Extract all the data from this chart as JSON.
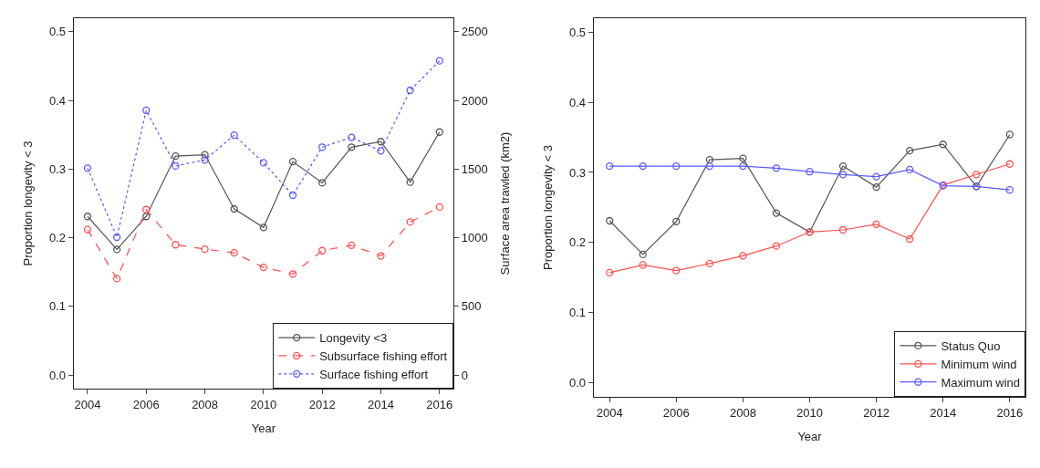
{
  "chart_data": [
    {
      "type": "line",
      "xlabel": "Year",
      "ylabel": "Proportion longevity < 3",
      "y2label": "Surface area trawled (km2)",
      "x": [
        2004,
        2005,
        2006,
        2007,
        2008,
        2009,
        2010,
        2011,
        2012,
        2013,
        2014,
        2015,
        2016
      ],
      "xlim": [
        2003.52,
        2016.48
      ],
      "xticks": [
        2004,
        2006,
        2008,
        2010,
        2012,
        2014,
        2016
      ],
      "ylim": [
        -0.02,
        0.52
      ],
      "yticks": [
        {
          "value": 0,
          "label": "0.0"
        },
        0.1,
        0.2,
        0.3,
        0.4,
        0.5
      ],
      "y2lim": [
        -100,
        2600
      ],
      "y2ticks": [
        0,
        500,
        1000,
        1500,
        2000,
        2500
      ],
      "legend": "bottom right",
      "marker": "circle",
      "series": [
        {
          "name": "Longevity <3",
          "color": "#555555",
          "line_style": "solid",
          "values": [
            0.231,
            0.183,
            0.231,
            0.319,
            0.321,
            0.242,
            0.215,
            0.311,
            0.28,
            0.332,
            0.34,
            0.281,
            0.354
          ]
        },
        {
          "name": "Subsurface fishing effort",
          "color": "#ff5050",
          "line_style": "dashed",
          "axis": "y2",
          "values": [
            1059,
            702,
            1205,
            949,
            917,
            890,
            784,
            736,
            906,
            945,
            867,
            1114,
            1224
          ]
        },
        {
          "name": "Surface fishing effort",
          "color": "#5a5aff",
          "line_style": "dotted",
          "axis": "y2",
          "values": [
            1507,
            1004,
            1928,
            1523,
            1567,
            1747,
            1546,
            1310,
            1660,
            1731,
            1633,
            2074,
            2289
          ]
        }
      ]
    },
    {
      "type": "line",
      "xlabel": "Year",
      "ylabel": "Proportion longevity < 3",
      "x": [
        2004,
        2005,
        2006,
        2007,
        2008,
        2009,
        2010,
        2011,
        2012,
        2013,
        2014,
        2015,
        2016
      ],
      "xlim": [
        2003.52,
        2016.48
      ],
      "xticks": [
        2004,
        2006,
        2008,
        2010,
        2012,
        2014,
        2016
      ],
      "ylim": [
        -0.02,
        0.52
      ],
      "yticks": [
        {
          "value": 0,
          "label": "0.0"
        },
        0.1,
        0.2,
        0.3,
        0.4,
        0.5
      ],
      "legend": "bottom right",
      "marker": "circle",
      "line_style": "solid",
      "series": [
        {
          "name": "Status Quo",
          "color": "#555555",
          "values": [
            0.231,
            0.183,
            0.23,
            0.318,
            0.32,
            0.242,
            0.215,
            0.309,
            0.279,
            0.331,
            0.34,
            0.28,
            0.354
          ]
        },
        {
          "name": "Minimum wind",
          "color": "#ff5050",
          "values": [
            0.157,
            0.168,
            0.16,
            0.17,
            0.181,
            0.195,
            0.215,
            0.218,
            0.226,
            0.205,
            0.282,
            0.297,
            0.312
          ]
        },
        {
          "name": "Maximum wind",
          "color": "#5a5aff",
          "values": [
            0.309,
            0.309,
            0.309,
            0.309,
            0.309,
            0.306,
            0.301,
            0.297,
            0.294,
            0.304,
            0.281,
            0.28,
            0.275
          ]
        }
      ]
    }
  ]
}
